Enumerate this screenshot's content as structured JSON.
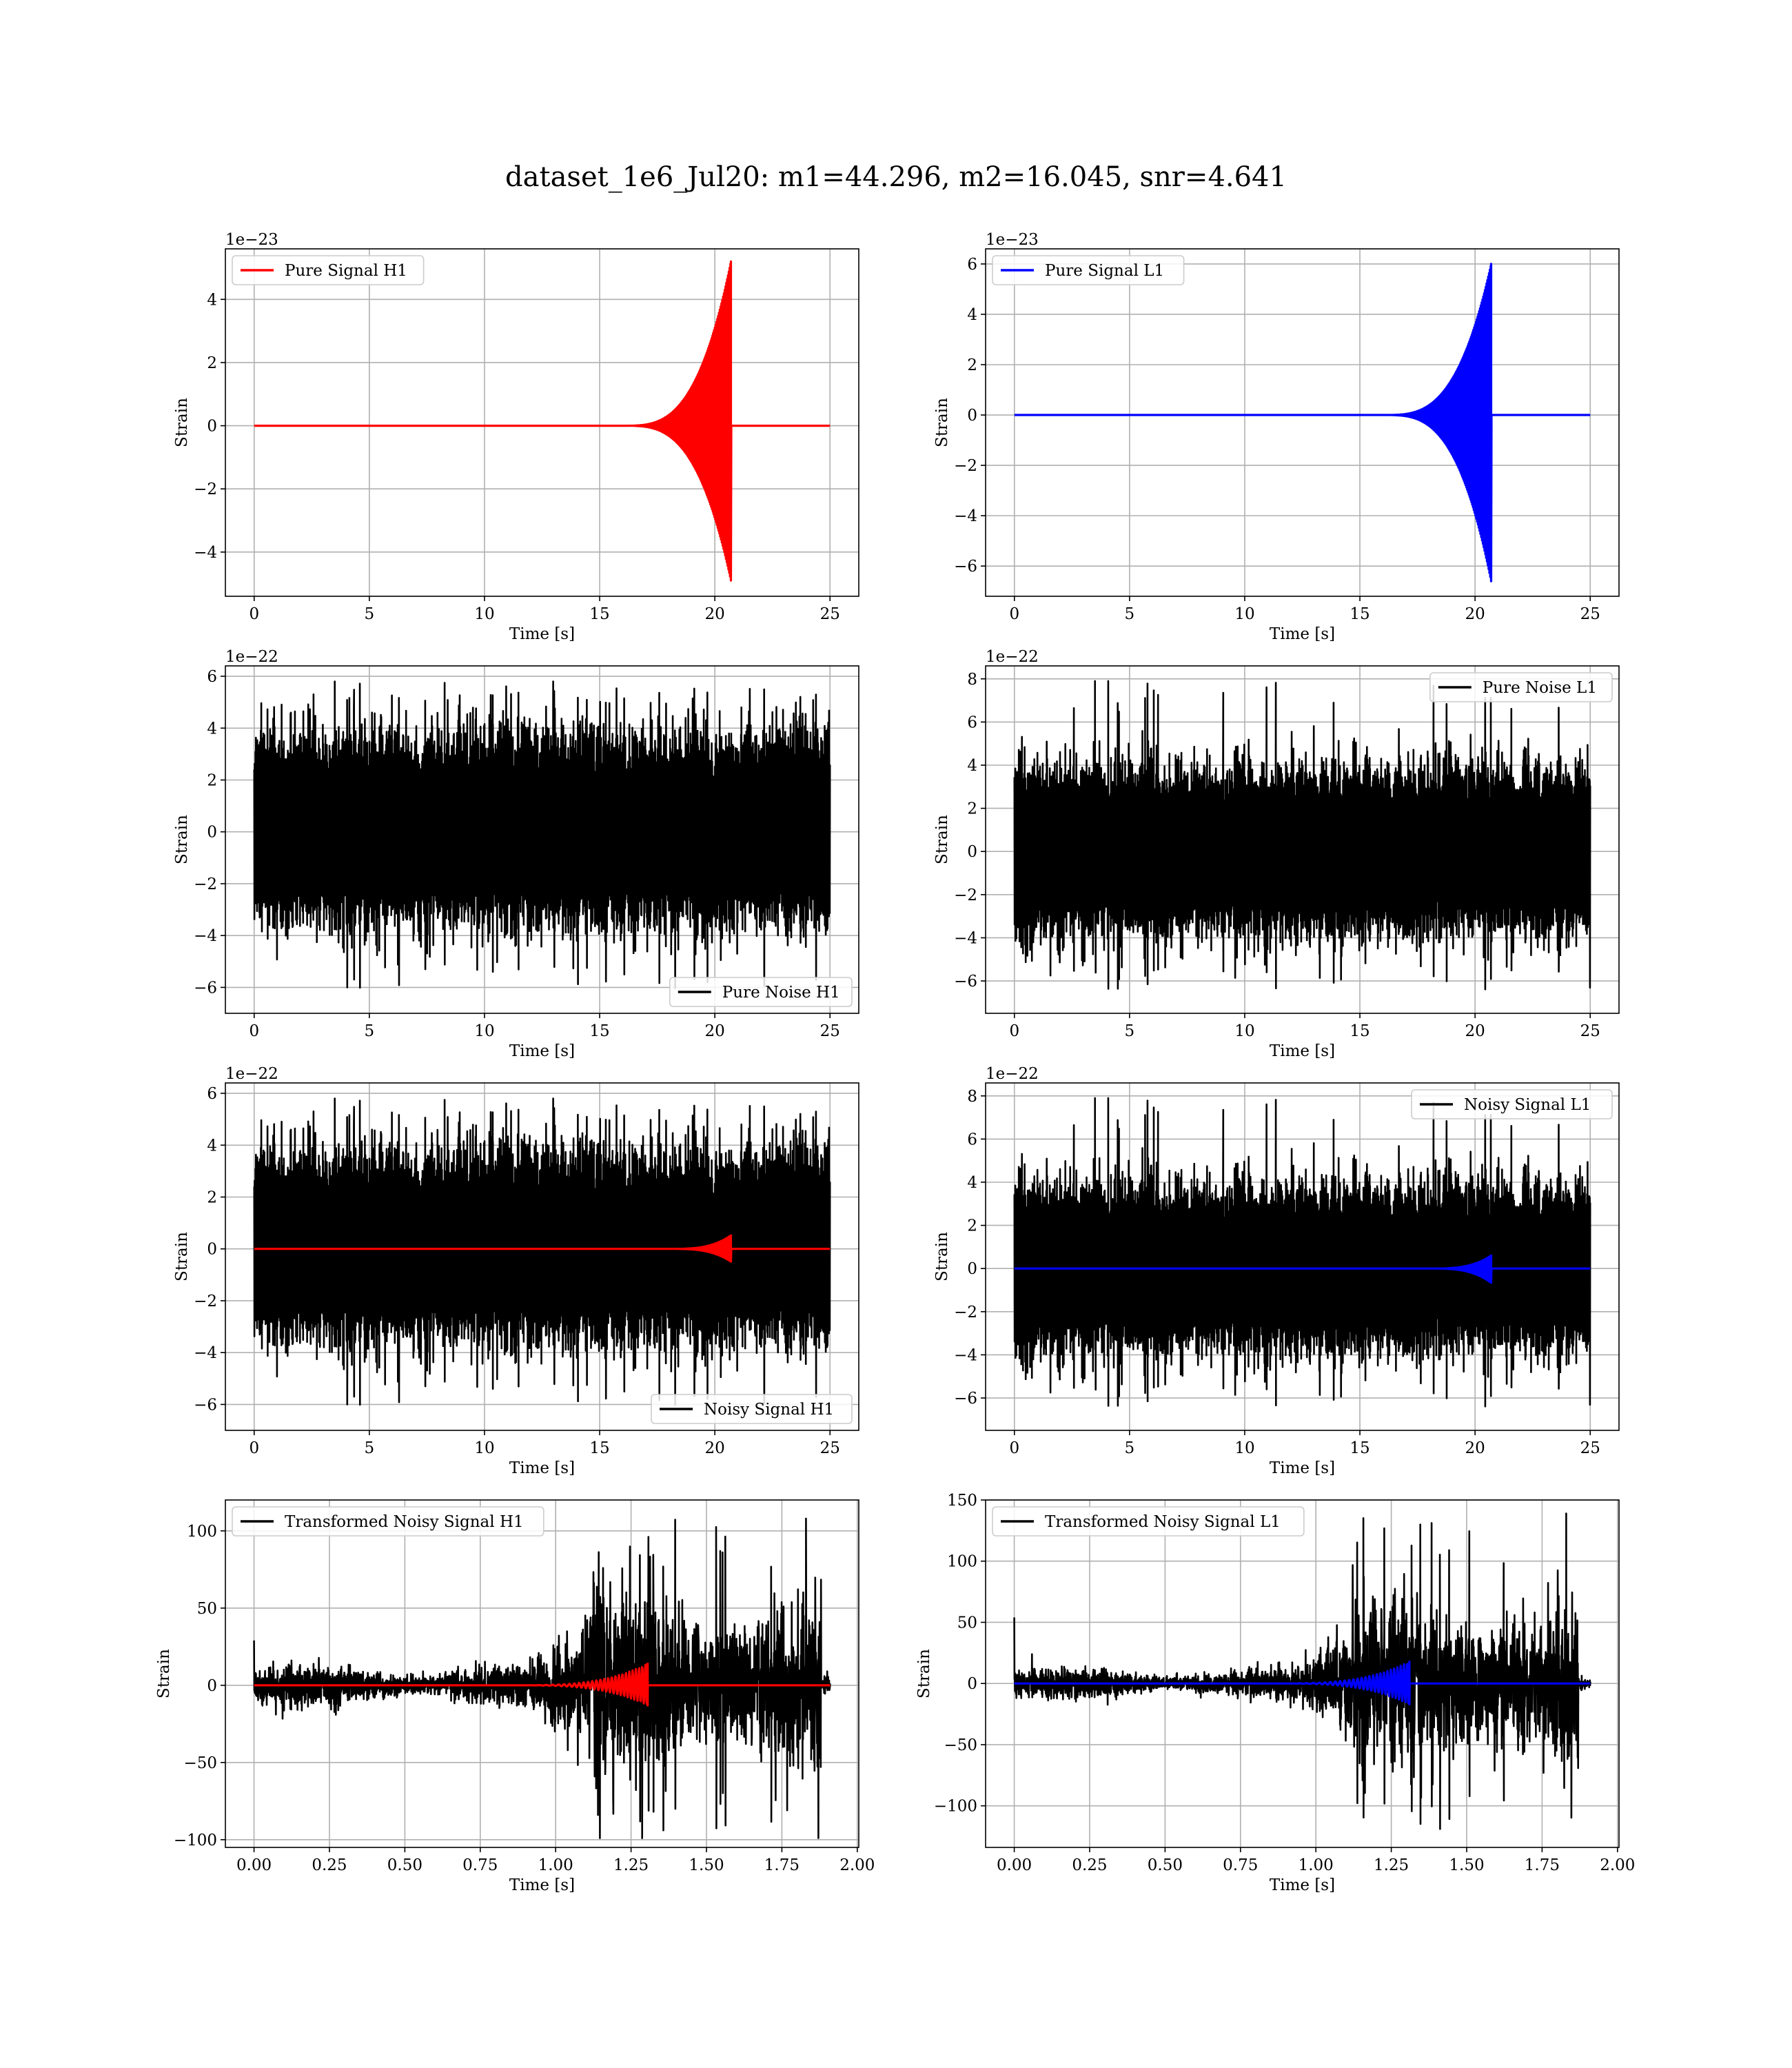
{
  "figure": {
    "title": "dataset_1e6_Jul20: m1=44.296, m2=16.045, snr=4.641"
  },
  "chart_data": [
    {
      "type": "line",
      "id": "pure-signal-h1",
      "xlabel": "Time [s]",
      "ylabel": "Strain",
      "offset_text": "1e−23",
      "xlim": [
        -1.25,
        26.25
      ],
      "ylim": [
        -5.4,
        5.6
      ],
      "xticks": [
        0,
        5,
        10,
        15,
        20,
        25
      ],
      "xtick_labels": [
        "0",
        "5",
        "10",
        "15",
        "20",
        "25"
      ],
      "yticks": [
        -4,
        -2,
        0,
        2,
        4
      ],
      "ytick_labels": [
        "−4",
        "−2",
        "0",
        "2",
        "4"
      ],
      "grid": true,
      "legend_position": "upper left",
      "series": [
        {
          "name": "Pure Signal H1",
          "color": "#ff0000",
          "kind": "chirp",
          "t_start": 0,
          "t_end": 25,
          "t_merge": 20.7,
          "peak_high": 5.2,
          "peak_low": -4.9,
          "t_onset": 16.0
        }
      ]
    },
    {
      "type": "line",
      "id": "pure-signal-l1",
      "xlabel": "Time [s]",
      "ylabel": "Strain",
      "offset_text": "1e−23",
      "xlim": [
        -1.25,
        26.25
      ],
      "ylim": [
        -7.2,
        6.6
      ],
      "xticks": [
        0,
        5,
        10,
        15,
        20,
        25
      ],
      "xtick_labels": [
        "0",
        "5",
        "10",
        "15",
        "20",
        "25"
      ],
      "yticks": [
        -6,
        -4,
        -2,
        0,
        2,
        4,
        6
      ],
      "ytick_labels": [
        "−6",
        "−4",
        "−2",
        "0",
        "2",
        "4",
        "6"
      ],
      "grid": true,
      "legend_position": "upper left",
      "series": [
        {
          "name": "Pure Signal L1",
          "color": "#0000ff",
          "kind": "chirp",
          "t_start": 0,
          "t_end": 25,
          "t_merge": 20.7,
          "peak_high": 6.0,
          "peak_low": -6.6,
          "t_onset": 16.0
        }
      ]
    },
    {
      "type": "line",
      "id": "pure-noise-h1",
      "xlabel": "Time [s]",
      "ylabel": "Strain",
      "offset_text": "1e−22",
      "xlim": [
        -1.25,
        26.25
      ],
      "ylim": [
        -7.0,
        6.4
      ],
      "xticks": [
        0,
        5,
        10,
        15,
        20,
        25
      ],
      "xtick_labels": [
        "0",
        "5",
        "10",
        "15",
        "20",
        "25"
      ],
      "yticks": [
        -6,
        -4,
        -2,
        0,
        2,
        4,
        6
      ],
      "ytick_labels": [
        "−6",
        "−4",
        "−2",
        "0",
        "2",
        "4",
        "6"
      ],
      "grid": true,
      "legend_position": "lower right",
      "series": [
        {
          "name": "Pure Noise H1",
          "color": "#000000",
          "kind": "noise",
          "t_start": 0,
          "t_end": 25,
          "band_high": 3.8,
          "band_low": -3.6,
          "spike_high": 5.8,
          "spike_low": -6.2,
          "seed": 11
        }
      ]
    },
    {
      "type": "line",
      "id": "pure-noise-l1",
      "xlabel": "Time [s]",
      "ylabel": "Strain",
      "offset_text": "1e−22",
      "xlim": [
        -1.25,
        26.25
      ],
      "ylim": [
        -7.5,
        8.6
      ],
      "xticks": [
        0,
        5,
        10,
        15,
        20,
        25
      ],
      "xtick_labels": [
        "0",
        "5",
        "10",
        "15",
        "20",
        "25"
      ],
      "yticks": [
        -6,
        -4,
        -2,
        0,
        2,
        4,
        6,
        8
      ],
      "ytick_labels": [
        "−6",
        "−4",
        "−2",
        "0",
        "2",
        "4",
        "6",
        "8"
      ],
      "grid": true,
      "legend_position": "upper right",
      "series": [
        {
          "name": "Pure Noise L1",
          "color": "#000000",
          "kind": "noise",
          "t_start": 0,
          "t_end": 25,
          "band_high": 3.9,
          "band_low": -3.9,
          "spike_high": 7.9,
          "spike_low": -6.6,
          "seed": 23
        }
      ]
    },
    {
      "type": "line",
      "id": "noisy-signal-h1",
      "xlabel": "Time [s]",
      "ylabel": "Strain",
      "offset_text": "1e−22",
      "xlim": [
        -1.25,
        26.25
      ],
      "ylim": [
        -7.0,
        6.4
      ],
      "xticks": [
        0,
        5,
        10,
        15,
        20,
        25
      ],
      "xtick_labels": [
        "0",
        "5",
        "10",
        "15",
        "20",
        "25"
      ],
      "yticks": [
        -6,
        -4,
        -2,
        0,
        2,
        4,
        6
      ],
      "ytick_labels": [
        "−6",
        "−4",
        "−2",
        "0",
        "2",
        "4",
        "6"
      ],
      "grid": true,
      "legend_position": "lower right",
      "series": [
        {
          "name": "Noisy Signal H1",
          "color": "#000000",
          "kind": "noise",
          "t_start": 0,
          "t_end": 25,
          "band_high": 3.8,
          "band_low": -3.6,
          "spike_high": 5.8,
          "spike_low": -6.2,
          "seed": 11
        },
        {
          "name": "",
          "color": "#ff0000",
          "kind": "chirp",
          "t_start": 0,
          "t_end": 25,
          "t_merge": 20.7,
          "peak_high": 0.52,
          "peak_low": -0.49,
          "t_onset": 18.0
        }
      ]
    },
    {
      "type": "line",
      "id": "noisy-signal-l1",
      "xlabel": "Time [s]",
      "ylabel": "Strain",
      "offset_text": "1e−22",
      "xlim": [
        -1.25,
        26.25
      ],
      "ylim": [
        -7.5,
        8.6
      ],
      "xticks": [
        0,
        5,
        10,
        15,
        20,
        25
      ],
      "xtick_labels": [
        "0",
        "5",
        "10",
        "15",
        "20",
        "25"
      ],
      "yticks": [
        -6,
        -4,
        -2,
        0,
        2,
        4,
        6,
        8
      ],
      "ytick_labels": [
        "−6",
        "−4",
        "−2",
        "0",
        "2",
        "4",
        "6",
        "8"
      ],
      "grid": true,
      "legend_position": "upper right",
      "series": [
        {
          "name": "Noisy Signal L1",
          "color": "#000000",
          "kind": "noise",
          "t_start": 0,
          "t_end": 25,
          "band_high": 3.9,
          "band_low": -3.9,
          "spike_high": 7.9,
          "spike_low": -6.6,
          "seed": 23
        },
        {
          "name": "",
          "color": "#0000ff",
          "kind": "chirp",
          "t_start": 0,
          "t_end": 25,
          "t_merge": 20.7,
          "peak_high": 0.6,
          "peak_low": -0.66,
          "t_onset": 18.0
        }
      ]
    },
    {
      "type": "line",
      "id": "transformed-noisy-signal-h1",
      "xlabel": "Time [s]",
      "ylabel": "Strain",
      "offset_text": "",
      "xlim": [
        -0.095,
        2.005
      ],
      "ylim": [
        -105,
        120
      ],
      "xticks": [
        0,
        0.25,
        0.5,
        0.75,
        1.0,
        1.25,
        1.5,
        1.75,
        2.0
      ],
      "xtick_labels": [
        "0.00",
        "0.25",
        "0.50",
        "0.75",
        "1.00",
        "1.25",
        "1.50",
        "1.75",
        "2.00"
      ],
      "yticks": [
        -100,
        -50,
        0,
        50,
        100
      ],
      "ytick_labels": [
        "−100",
        "−50",
        "0",
        "50",
        "100"
      ],
      "grid": true,
      "legend_position": "upper left",
      "series": [
        {
          "name": "Transformed Noisy Signal H1",
          "color": "#000000",
          "kind": "whitened",
          "t_start": 0,
          "t_end": 1.91,
          "t_jump": 1.12,
          "t_end_burst": 1.88,
          "low_amp": 12,
          "high_amp": 70,
          "spike_high": 108,
          "spike_low": -99,
          "first_value": 29,
          "seed": 5
        },
        {
          "name": "",
          "color": "#ff0000",
          "kind": "chirp",
          "t_start": 0,
          "t_end": 1.91,
          "t_merge": 1.305,
          "peak_high": 14,
          "peak_low": -13,
          "t_onset": 0.85,
          "cycles": 28
        }
      ]
    },
    {
      "type": "line",
      "id": "transformed-noisy-signal-l1",
      "xlabel": "Time [s]",
      "ylabel": "Strain",
      "offset_text": "",
      "xlim": [
        -0.095,
        2.005
      ],
      "ylim": [
        -134,
        150
      ],
      "xticks": [
        0,
        0.25,
        0.5,
        0.75,
        1.0,
        1.25,
        1.5,
        1.75,
        2.0
      ],
      "xtick_labels": [
        "0.00",
        "0.25",
        "0.50",
        "0.75",
        "1.00",
        "1.25",
        "1.50",
        "1.75",
        "2.00"
      ],
      "yticks": [
        -100,
        -50,
        0,
        50,
        100,
        150
      ],
      "ytick_labels": [
        "−100",
        "−50",
        "0",
        "50",
        "100",
        "150"
      ],
      "grid": true,
      "legend_position": "upper left",
      "series": [
        {
          "name": "Transformed Noisy Signal L1",
          "color": "#000000",
          "kind": "whitened",
          "t_start": 0,
          "t_end": 1.91,
          "t_jump": 1.12,
          "t_end_burst": 1.87,
          "low_amp": 12,
          "high_amp": 80,
          "spike_high": 139,
          "spike_low": -120,
          "first_value": 54,
          "seed": 9
        },
        {
          "name": "",
          "color": "#0000ff",
          "kind": "chirp",
          "t_start": 0,
          "t_end": 1.91,
          "t_merge": 1.31,
          "peak_high": 18,
          "peak_low": -17,
          "t_onset": 0.85,
          "cycles": 28
        }
      ]
    }
  ]
}
